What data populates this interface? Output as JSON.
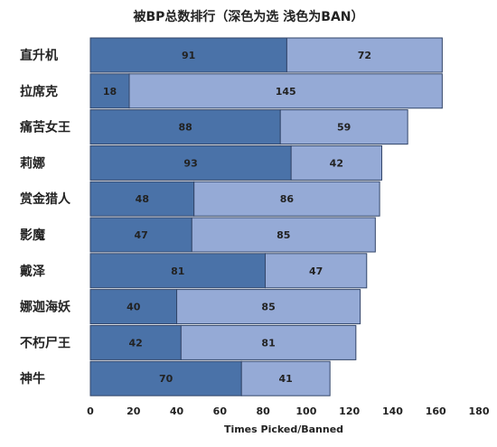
{
  "chart_data": {
    "type": "bar",
    "orientation": "horizontal",
    "stacked": true,
    "title": "被BP总数排行（深色为选 浅色为BAN）",
    "xlabel": "Times Picked/Banned",
    "ylabel": "",
    "xlim": [
      0,
      180
    ],
    "x_ticks": [
      0,
      20,
      40,
      60,
      80,
      100,
      120,
      140,
      160,
      180
    ],
    "categories": [
      "直升机",
      "拉席克",
      "痛苦女王",
      "莉娜",
      "赏金猎人",
      "影魔",
      "戴泽",
      "娜迦海妖",
      "不朽尸王",
      "神牛"
    ],
    "series": [
      {
        "values": [
          91,
          18,
          88,
          93,
          48,
          47,
          81,
          40,
          42,
          70
        ],
        "color": "#4a72a8"
      },
      {
        "values": [
          72,
          145,
          59,
          42,
          86,
          85,
          47,
          85,
          81,
          41
        ],
        "color": "#95aad6"
      }
    ],
    "legend": "none",
    "grid": false
  }
}
